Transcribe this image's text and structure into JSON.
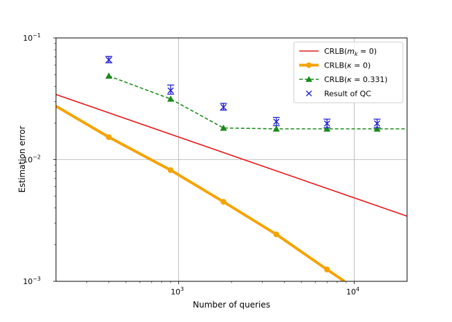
{
  "chart_data": {
    "type": "line",
    "xscale": "log",
    "yscale": "log",
    "xlim": [
      200,
      20000
    ],
    "ylim": [
      0.001,
      0.1
    ],
    "xlabel": "Number of queries",
    "ylabel": "Estimation error",
    "grid": "major",
    "legend_position": "top-right",
    "x_ticks": [
      {
        "value": 1000,
        "base": "10",
        "exp": "3"
      },
      {
        "value": 10000,
        "base": "10",
        "exp": "4"
      }
    ],
    "y_ticks": [
      {
        "value": 0.001,
        "base": "10",
        "exp": "−3"
      },
      {
        "value": 0.01,
        "base": "10",
        "exp": "−2"
      },
      {
        "value": 0.1,
        "base": "10",
        "exp": "−1"
      }
    ],
    "series": [
      {
        "name": "CRLB(m_k = 0)",
        "legend_label": {
          "prefix": "CRLB(",
          "var": "m",
          "sub": "k",
          "suffix": " = 0)"
        },
        "color": "#e41a1c",
        "style": "solid",
        "marker": "none",
        "x": [
          200,
          20000
        ],
        "y": [
          0.0343,
          0.00343
        ]
      },
      {
        "name": "CRLB(κ = 0)",
        "legend_label": {
          "prefix": "CRLB(",
          "var": "κ",
          "sub": "",
          "suffix": " = 0)"
        },
        "color": "#f5a300",
        "style": "solid",
        "marker": "circle",
        "x": [
          200,
          400,
          900,
          1800,
          3600,
          7000,
          8800
        ],
        "y": [
          0.0275,
          0.0153,
          0.0082,
          0.0045,
          0.00243,
          0.00125,
          0.001
        ],
        "marker_x": [
          400,
          900,
          1800,
          3600,
          7000
        ]
      },
      {
        "name": "CRLB(κ = 0.331)",
        "legend_label": {
          "prefix": "CRLB(",
          "var": "κ",
          "sub": "",
          "suffix": " = 0.331)"
        },
        "color": "#1a8a1a",
        "style": "dashed",
        "marker": "triangle",
        "x": [
          400,
          900,
          1800,
          3600,
          7000,
          13500,
          20000
        ],
        "y": [
          0.0487,
          0.0315,
          0.0182,
          0.0179,
          0.0179,
          0.0179,
          0.0179
        ],
        "marker_x": [
          400,
          900,
          1800,
          3600,
          7000,
          13500
        ]
      },
      {
        "name": "Result of QC",
        "legend_label": {
          "prefix": "Result of QC",
          "var": "",
          "sub": "",
          "suffix": ""
        },
        "color": "#1f1fd0",
        "style": "none",
        "marker": "x",
        "x": [
          400,
          900,
          1800,
          3600,
          7000,
          13500
        ],
        "y": [
          0.066,
          0.037,
          0.027,
          0.0205,
          0.0198,
          0.0198
        ],
        "err_low": [
          0.0625,
          0.0345,
          0.0255,
          0.019,
          0.0183,
          0.0183
        ],
        "err_high": [
          0.0705,
          0.041,
          0.029,
          0.0222,
          0.0215,
          0.0215
        ]
      }
    ]
  }
}
